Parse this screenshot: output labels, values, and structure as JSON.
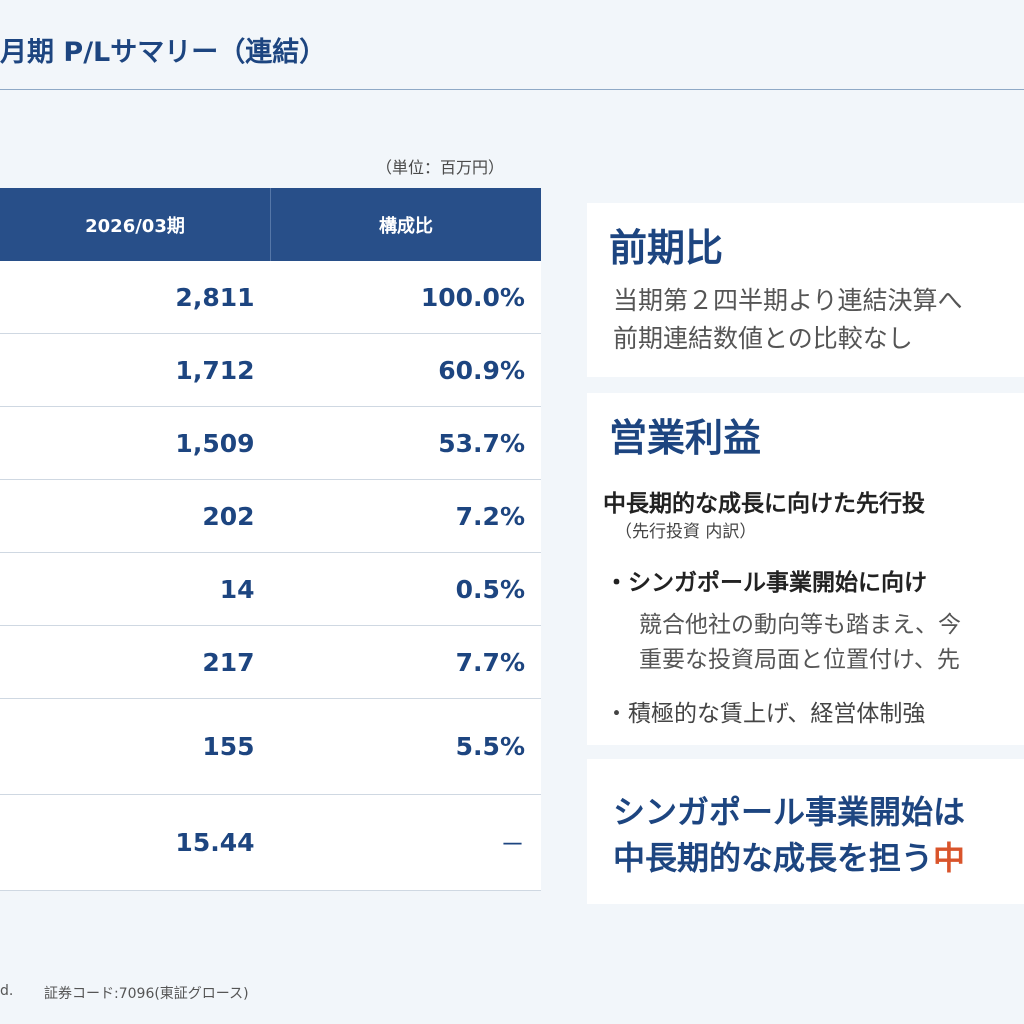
{
  "header": {
    "title": "月期 P/Lサマリー（連結）"
  },
  "unit_note": "（単位：百万円）",
  "table": {
    "columns": [
      "2026/03期",
      "構成比"
    ],
    "rows": [
      {
        "value": "2,811",
        "ratio": "100.0%"
      },
      {
        "value": "1,712",
        "ratio": "60.9%"
      },
      {
        "value": "1,509",
        "ratio": "53.7%"
      },
      {
        "value": "202",
        "ratio": "7.2%"
      },
      {
        "value": "14",
        "ratio": "0.5%"
      },
      {
        "value": "217",
        "ratio": "7.7%"
      },
      {
        "value": "155",
        "ratio": "5.5%"
      },
      {
        "value": "15.44",
        "ratio": "－"
      }
    ]
  },
  "card_prev": {
    "heading": "前期比",
    "line1": "当期第２四半期より連結決算へ",
    "line2": "前期連結数値との比較なし"
  },
  "card_op": {
    "heading": "営業利益",
    "lead": "中長期的な成長に向けた先行投",
    "sub": "（先行投資 内訳）",
    "bullet1": "・シンガポール事業開始に向け",
    "detail1": "競合他社の動向等も踏まえ、今",
    "detail2": "重要な投資局面と位置付け、先",
    "bullet2": "・積極的な賃上げ、経営体制強"
  },
  "card_msg": {
    "line1": "シンガポール事業開始は",
    "line2_main": "中長期的な成長を担う",
    "line2_accent": "中"
  },
  "footer": {
    "left": "d.",
    "code": "証券コード:7096(東証グロース)"
  },
  "colors": {
    "header_fill": "#284f89",
    "text_primary": "#1d4580",
    "accent": "#d9542b"
  }
}
